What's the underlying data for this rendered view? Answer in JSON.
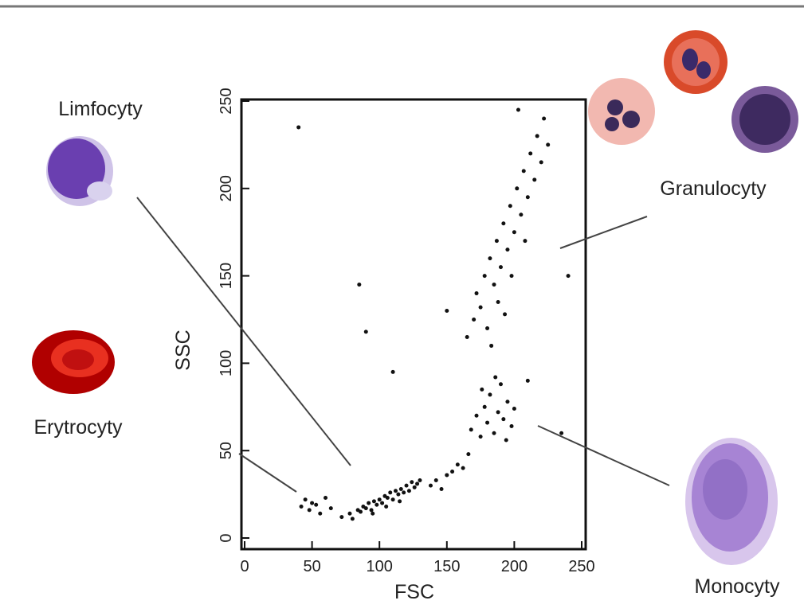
{
  "chart_data": {
    "type": "scatter",
    "x_label": "FSC",
    "y_label": "SSC",
    "xlim": [
      0,
      255
    ],
    "ylim": [
      0,
      255
    ],
    "xticks": [
      0,
      50,
      100,
      150,
      200,
      250
    ],
    "yticks": [
      0,
      50,
      100,
      150,
      200,
      250
    ],
    "color": "#111111",
    "annotations": [
      "Limfocyty",
      "Granulocyty",
      "Erytrocyty",
      "Monocyty"
    ],
    "x": [
      72,
      78,
      80,
      84,
      86,
      88,
      90,
      92,
      94,
      96,
      98,
      100,
      102,
      104,
      106,
      108,
      110,
      112,
      114,
      116,
      118,
      120,
      122,
      124,
      126,
      128,
      130,
      95,
      105,
      115,
      42,
      45,
      48,
      50,
      53,
      56,
      60,
      64,
      138,
      142,
      146,
      150,
      154,
      158,
      162,
      166,
      168,
      172,
      175,
      178,
      180,
      182,
      185,
      188,
      190,
      192,
      195,
      198,
      200,
      176,
      186,
      194,
      165,
      170,
      172,
      175,
      178,
      180,
      182,
      185,
      187,
      190,
      192,
      195,
      197,
      200,
      202,
      205,
      207,
      210,
      212,
      215,
      217,
      220,
      222,
      225,
      188,
      198,
      208,
      183,
      193,
      203,
      40,
      85,
      90,
      110,
      150,
      210,
      235,
      240
    ],
    "values": [
      12,
      14,
      11,
      16,
      15,
      18,
      17,
      20,
      16,
      21,
      19,
      22,
      20,
      24,
      23,
      26,
      22,
      27,
      25,
      28,
      26,
      30,
      27,
      32,
      29,
      31,
      33,
      14,
      18,
      21,
      18,
      22,
      16,
      20,
      19,
      14,
      23,
      17,
      30,
      33,
      28,
      36,
      38,
      42,
      40,
      48,
      62,
      70,
      58,
      75,
      66,
      82,
      60,
      72,
      88,
      68,
      78,
      64,
      74,
      85,
      92,
      56,
      115,
      125,
      140,
      132,
      150,
      120,
      160,
      145,
      170,
      155,
      180,
      165,
      190,
      175,
      200,
      185,
      210,
      195,
      220,
      205,
      230,
      215,
      240,
      225,
      135,
      150,
      170,
      110,
      128,
      245,
      235,
      145,
      118,
      95,
      130,
      90,
      60,
      150
    ]
  }
}
